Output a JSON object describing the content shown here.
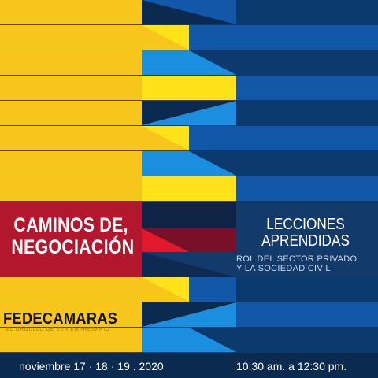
{
  "title_left": {
    "line1": "CAMINOS DE,",
    "line2": "NEGOCIACIÓN"
  },
  "title_right": {
    "line1": "LECCIONES",
    "line2": "APRENDIDAS"
  },
  "subtitle": {
    "line1": "ROL DEL SECTOR PRIVADO",
    "line2": "Y LA SOCIEDAD CIVIL"
  },
  "logo": {
    "name": "FEDECAMARAS",
    "tagline": "EL ORGULLO DE SER EMPRESARIO"
  },
  "footer": {
    "date": "noviembre 17 · 18 · 19 . 2020",
    "time": "10:30 am.  a  12:30 pm."
  },
  "colors": {
    "yellow": "#f7c51c",
    "yellow_bright": "#ffe21a",
    "navy": "#0d3a6e",
    "navy_dark": "#0b2a4f",
    "blue_mid": "#1257a8",
    "blue_light": "#1c8ee0",
    "crimson": "#b3172e",
    "red": "#e3192b"
  }
}
